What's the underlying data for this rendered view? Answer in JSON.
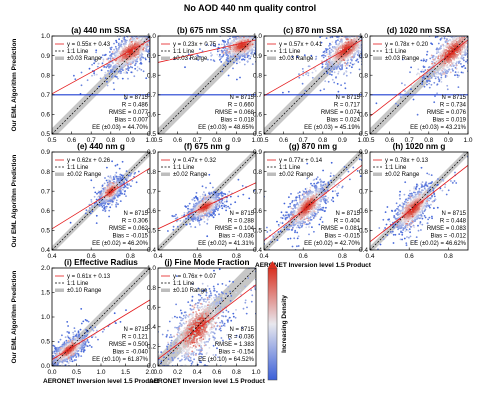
{
  "figure_title": "No AOD 440 nm quality control",
  "ylabel": "Our EML Algorithm Prediction",
  "xlabel": "AERONET Inversion level 1.5 Product",
  "colorbar_label": "Increasing Density",
  "colors": {
    "density_low": "#3b5fd8",
    "density_mid": "#e8e8ee",
    "density_high": "#d93020",
    "fit_line": "#e41a1c",
    "one_to_one": "#000000",
    "range_band": "#bdbdbd",
    "qc_line": "#1f3fd0"
  },
  "legend": {
    "fit_prefix": "y = ",
    "one_to_one": "1:1 Line"
  },
  "chart_data": [
    {
      "type": "scatter",
      "label": "(a) 440 nm SSA",
      "xlim": [
        0.5,
        1.0
      ],
      "ylim": [
        0.5,
        1.0
      ],
      "xticks": [
        "0.5",
        "0.6",
        "0.7",
        "0.8",
        "0.9",
        "1.0"
      ],
      "yticks": [
        "0.5",
        "0.6",
        "0.7",
        "0.8",
        "0.9",
        "1.0"
      ],
      "xticks_v": [
        0.5,
        0.6,
        0.7,
        0.8,
        0.9,
        1.0
      ],
      "yticks_v": [
        0.5,
        0.6,
        0.7,
        0.8,
        0.9,
        1.0
      ],
      "fit": {
        "slope": 0.55,
        "intercept": 0.43,
        "text": "y = 0.55x + 0.43"
      },
      "range": 0.03,
      "range_label": "±0.03 Range",
      "qc_line": 0.7,
      "center": [
        0.9,
        0.92
      ],
      "spread": [
        0.06,
        0.04
      ],
      "stats": [
        "N = 8715",
        "R = 0.486",
        "RMSE = 0.077",
        "Bias = 0.007",
        "EE (±0.03) = 44.70%"
      ]
    },
    {
      "type": "scatter",
      "label": "(b) 675 nm SSA",
      "xlim": [
        0.5,
        1.0
      ],
      "ylim": [
        0.5,
        1.0
      ],
      "xticks": [
        "0.5",
        "0.6",
        "0.7",
        "0.8",
        "0.9",
        "1.0"
      ],
      "yticks": [
        "0.5",
        "0.6",
        "0.7",
        "0.8",
        "0.9",
        "1.0"
      ],
      "xticks_v": [
        0.5,
        0.6,
        0.7,
        0.8,
        0.9,
        1.0
      ],
      "yticks_v": [
        0.5,
        0.6,
        0.7,
        0.8,
        0.9,
        1.0
      ],
      "fit": {
        "slope": 0.23,
        "intercept": 0.75,
        "text": "y = 0.23x + 0.75"
      },
      "range": 0.03,
      "range_label": "±0.03 Range",
      "qc_line": 0.7,
      "center": [
        0.93,
        0.95
      ],
      "spread": [
        0.05,
        0.03
      ],
      "stats": [
        "N = 8715",
        "R = 0.660",
        "RMSE = 0.068",
        "Bias = 0.018",
        "EE (±0.03) = 48.65%"
      ]
    },
    {
      "type": "scatter",
      "label": "(c) 870 nm SSA",
      "xlim": [
        0.5,
        1.0
      ],
      "ylim": [
        0.5,
        1.0
      ],
      "xticks": [
        "0.5",
        "0.6",
        "0.7",
        "0.8",
        "0.9",
        "1.0"
      ],
      "yticks": [
        "0.5",
        "0.6",
        "0.7",
        "0.8",
        "0.9",
        "1.0"
      ],
      "xticks_v": [
        0.5,
        0.6,
        0.7,
        0.8,
        0.9,
        1.0
      ],
      "yticks_v": [
        0.5,
        0.6,
        0.7,
        0.8,
        0.9,
        1.0
      ],
      "fit": {
        "slope": 0.57,
        "intercept": 0.41,
        "text": "y = 0.57x + 0.41"
      },
      "range": 0.03,
      "range_label": "±0.03 Range",
      "qc_line": 0.7,
      "center": [
        0.92,
        0.93
      ],
      "spread": [
        0.06,
        0.04
      ],
      "stats": [
        "N = 8715",
        "R = 0.717",
        "RMSE = 0.074",
        "Bias = 0.024",
        "EE (±0.03) = 45.19%"
      ]
    },
    {
      "type": "scatter",
      "label": "(d) 1020 nm SSA",
      "xlim": [
        0.5,
        1.0
      ],
      "ylim": [
        0.5,
        1.0
      ],
      "xticks": [
        "0.5",
        "0.6",
        "0.7",
        "0.8",
        "0.9",
        "1.0"
      ],
      "yticks": [
        "0.5",
        "0.6",
        "0.7",
        "0.8",
        "0.9",
        "1.0"
      ],
      "xticks_v": [
        0.5,
        0.6,
        0.7,
        0.8,
        0.9,
        1.0
      ],
      "yticks_v": [
        0.5,
        0.6,
        0.7,
        0.8,
        0.9,
        1.0
      ],
      "fit": {
        "slope": 0.78,
        "intercept": 0.2,
        "text": "y = 0.78x + 0.20"
      },
      "range": 0.03,
      "range_label": "±0.03 Range",
      "qc_line": 0.7,
      "center": [
        0.92,
        0.92
      ],
      "spread": [
        0.07,
        0.05
      ],
      "stats": [
        "N = 8715",
        "R = 0.734",
        "RMSE = 0.076",
        "Bias = 0.019",
        "EE (±0.03) = 43.21%"
      ]
    },
    {
      "type": "scatter",
      "label": "(e) 440 nm g",
      "xlim": [
        0.4,
        0.9
      ],
      "ylim": [
        0.4,
        0.9
      ],
      "xticks": [
        "0.4",
        "0.6",
        "0.8"
      ],
      "yticks": [
        "0.4",
        "0.5",
        "0.6",
        "0.7",
        "0.8",
        "0.9"
      ],
      "xticks_v": [
        0.4,
        0.6,
        0.8
      ],
      "yticks_v": [
        0.4,
        0.5,
        0.6,
        0.7,
        0.8,
        0.9
      ],
      "fit": {
        "slope": 0.62,
        "intercept": 0.26,
        "text": "y = 0.62x + 0.26"
      },
      "range": 0.02,
      "range_label": "±0.02 Range",
      "qc_line": null,
      "center": [
        0.7,
        0.7
      ],
      "spread": [
        0.03,
        0.025
      ],
      "stats": [
        "N = 8715",
        "R = 0.306",
        "RMSE = 0.062",
        "Bias = -0.015",
        "EE (±0.02) = 46.20%"
      ]
    },
    {
      "type": "scatter",
      "label": "(f) 675 nm g",
      "xlim": [
        0.4,
        0.9
      ],
      "ylim": [
        0.4,
        0.9
      ],
      "xticks": [
        "0.4",
        "0.6",
        "0.8"
      ],
      "yticks": [
        "0.4",
        "0.5",
        "0.6",
        "0.7",
        "0.8",
        "0.9"
      ],
      "xticks_v": [
        0.4,
        0.6,
        0.8
      ],
      "yticks_v": [
        0.4,
        0.5,
        0.6,
        0.7,
        0.8,
        0.9
      ],
      "fit": {
        "slope": 0.47,
        "intercept": 0.32,
        "text": "y = 0.47x + 0.32"
      },
      "range": 0.02,
      "range_label": "±0.02 Range",
      "qc_line": null,
      "center": [
        0.64,
        0.62
      ],
      "spread": [
        0.04,
        0.025
      ],
      "stats": [
        "N = 8715",
        "R = 0.288",
        "RMSE = 0.104",
        "Bias = -0.036",
        "EE (±0.02) = 41.31%"
      ]
    },
    {
      "type": "scatter",
      "label": "(g) 870 nm g",
      "xlim": [
        0.4,
        0.9
      ],
      "ylim": [
        0.4,
        0.9
      ],
      "xticks": [
        "0.4",
        "0.6",
        "0.8"
      ],
      "yticks": [
        "0.4",
        "0.5",
        "0.6",
        "0.7",
        "0.8",
        "0.9"
      ],
      "xticks_v": [
        0.4,
        0.6,
        0.8
      ],
      "yticks_v": [
        0.4,
        0.5,
        0.6,
        0.7,
        0.8,
        0.9
      ],
      "fit": {
        "slope": 0.77,
        "intercept": 0.14,
        "text": "y = 0.77x + 0.14"
      },
      "range": 0.02,
      "range_label": "±0.02 Range",
      "qc_line": null,
      "center": [
        0.62,
        0.62
      ],
      "spread": [
        0.05,
        0.04
      ],
      "stats": [
        "N = 8715",
        "R = 0.404",
        "RMSE = 0.081",
        "Bias = -0.015",
        "EE (±0.02) = 42.70%"
      ]
    },
    {
      "type": "scatter",
      "label": "(h) 1020 nm g",
      "xlim": [
        0.4,
        0.9
      ],
      "ylim": [
        0.4,
        0.9
      ],
      "xticks": [
        "0.4",
        "0.6",
        "0.8"
      ],
      "yticks": [
        "0.4",
        "0.5",
        "0.6",
        "0.7",
        "0.8",
        "0.9"
      ],
      "xticks_v": [
        0.4,
        0.6,
        0.8
      ],
      "yticks_v": [
        0.4,
        0.5,
        0.6,
        0.7,
        0.8,
        0.9
      ],
      "fit": {
        "slope": 0.78,
        "intercept": 0.13,
        "text": "y = 0.78x + 0.13"
      },
      "range": 0.02,
      "range_label": "±0.02 Range",
      "qc_line": null,
      "center": [
        0.62,
        0.61
      ],
      "spread": [
        0.05,
        0.04
      ],
      "stats": [
        "N = 8715",
        "R = 0.448",
        "RMSE = 0.083",
        "Bias = -0.012",
        "EE (±0.02) = 46.62%"
      ]
    },
    {
      "type": "scatter",
      "label": "(i) Effective Radius",
      "xlim": [
        0.0,
        2.0
      ],
      "ylim": [
        0.0,
        2.0
      ],
      "xticks": [
        "0.0",
        "0.5",
        "1.0",
        "1.5",
        "2.0"
      ],
      "yticks": [
        "0.0",
        "0.5",
        "1.0",
        "1.5",
        "2.0"
      ],
      "xticks_v": [
        0.0,
        0.5,
        1.0,
        1.5,
        2.0
      ],
      "yticks_v": [
        0.0,
        0.5,
        1.0,
        1.5,
        2.0
      ],
      "fit": {
        "slope": 0.61,
        "intercept": 0.13,
        "text": "y = 0.61x + 0.13"
      },
      "range": 0.1,
      "range_label": "±0.10 Range",
      "qc_line": null,
      "center": [
        0.35,
        0.33
      ],
      "spread": [
        0.18,
        0.1
      ],
      "stats": [
        "N = 8715",
        "R = 0.121",
        "RMSE = 0.500",
        "Bias = -0.040",
        "EE (±0.10) = 61.87%"
      ]
    },
    {
      "type": "scatter",
      "label": "(j) Fine Mode Fraction",
      "xlim": [
        0.0,
        1.0
      ],
      "ylim": [
        0.0,
        1.0
      ],
      "xticks": [
        "0.0",
        "0.2",
        "0.4",
        "0.6",
        "0.8",
        "1.0"
      ],
      "yticks": [
        "0.0",
        "0.2",
        "0.4",
        "0.6",
        "0.8",
        "1.0"
      ],
      "xticks_v": [
        0.0,
        0.2,
        0.4,
        0.6,
        0.8,
        1.0
      ],
      "yticks_v": [
        0.0,
        0.2,
        0.4,
        0.6,
        0.8,
        1.0
      ],
      "fit": {
        "slope": 0.76,
        "intercept": 0.07,
        "text": "y = 0.76x + 0.07"
      },
      "range": 0.1,
      "range_label": "±0.10 Range",
      "qc_line": null,
      "center": [
        0.4,
        0.38
      ],
      "spread": [
        0.15,
        0.15
      ],
      "stats": [
        "N = 8715",
        "R = 0.036",
        "RMSE = 1.383",
        "Bias = -0.154",
        "EE (±0.10) = 64.52%"
      ]
    }
  ]
}
